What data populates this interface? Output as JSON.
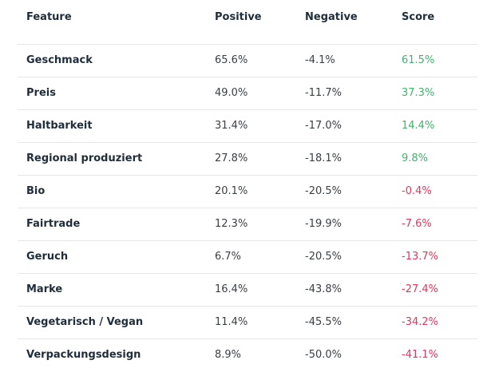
{
  "table": {
    "header": [
      "Feature",
      "Positive",
      "Negative",
      "Score"
    ],
    "rows": [
      [
        "Geschmack",
        "65.6%",
        "-4.1%",
        "61.5%"
      ],
      [
        "Preis",
        "49.0%",
        "-11.7%",
        "37.3%"
      ],
      [
        "Haltbarkeit",
        "31.4%",
        "-17.0%",
        "14.4%"
      ],
      [
        "Regional produziert",
        "27.8%",
        "-18.1%",
        "9.8%"
      ],
      [
        "Bio",
        "20.1%",
        "-20.5%",
        "-0.4%"
      ],
      [
        "Fairtrade",
        "12.3%",
        "-19.9%",
        "-7.6%"
      ],
      [
        "Geruch",
        "6.7%",
        "-20.5%",
        "-13.7%"
      ],
      [
        "Marke",
        "16.4%",
        "-43.8%",
        "-27.4%"
      ],
      [
        "Vegetarisch / Vegan",
        "11.4%",
        "-45.5%",
        "-34.2%"
      ],
      [
        "Verpackungsdesign",
        "8.9%",
        "-50.0%",
        "-41.1%"
      ]
    ]
  }
}
